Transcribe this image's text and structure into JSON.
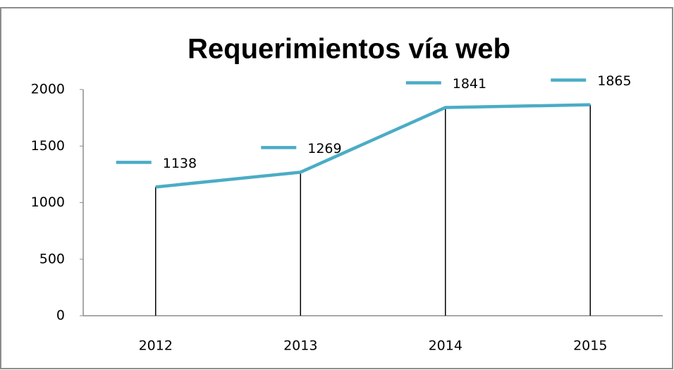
{
  "chart_data": {
    "type": "line",
    "title": "Requerimientos vía web",
    "categories": [
      "2012",
      "2013",
      "2014",
      "2015"
    ],
    "values": [
      1138,
      1269,
      1841,
      1865
    ],
    "color": "#4bacc6",
    "ylim": [
      0,
      2000
    ],
    "yticks": [
      0,
      500,
      1000,
      1500,
      2000
    ],
    "drop_lines": true,
    "data_labels": true
  }
}
